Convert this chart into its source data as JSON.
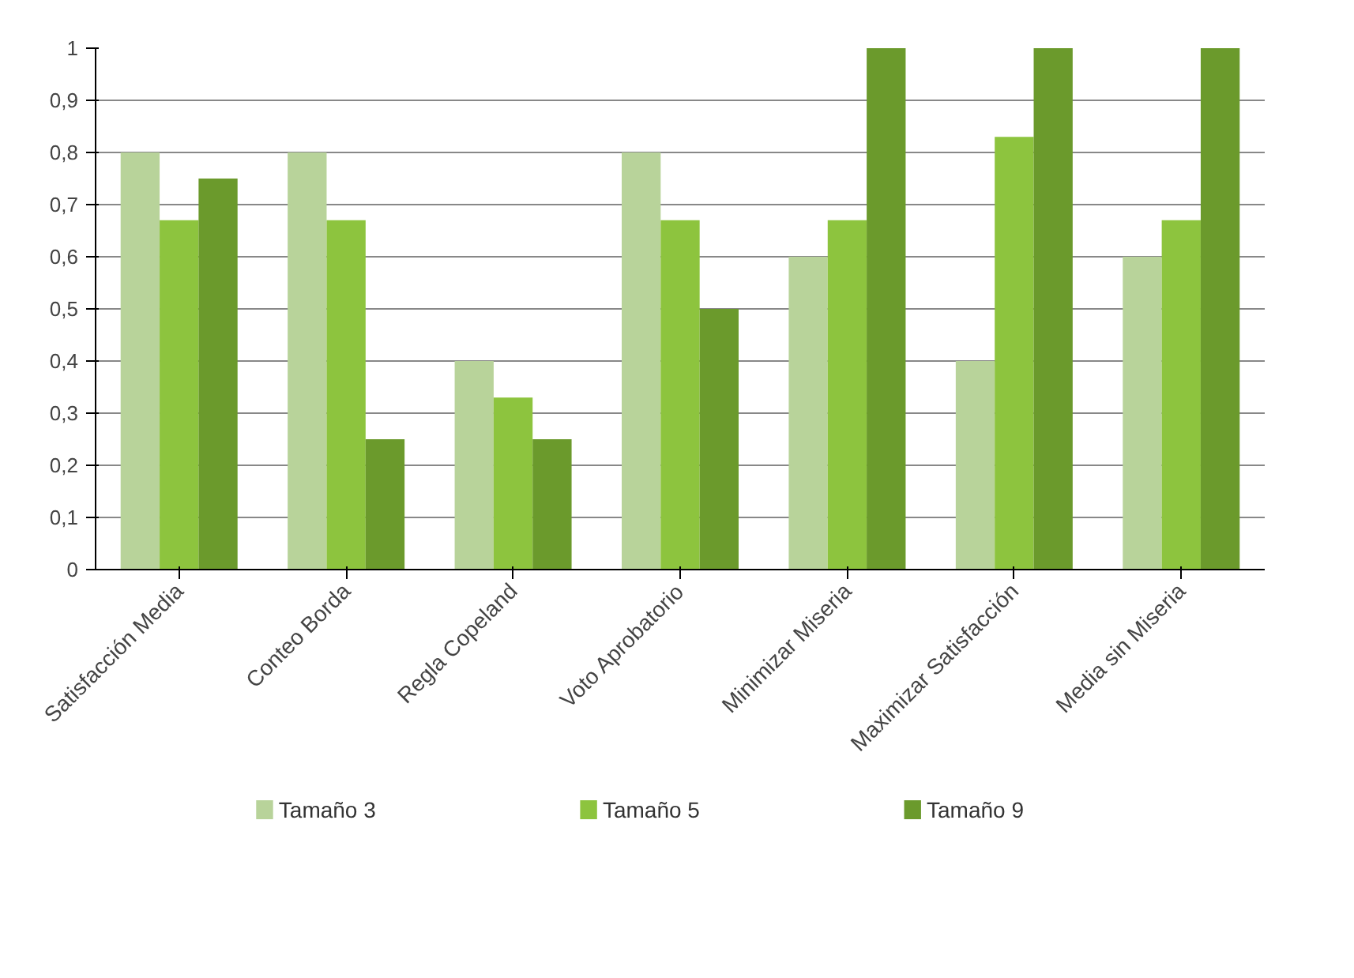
{
  "chart_data": {
    "type": "bar",
    "categories": [
      "Satisfacción Media",
      "Conteo Borda",
      "Regla Copeland",
      "Voto Aprobatorio",
      "Minimizar Miseria",
      "Maximizar Satisfacción",
      "Media sin Miseria"
    ],
    "series": [
      {
        "name": "Tamaño 3",
        "color": "#b8d39a",
        "values": [
          0.8,
          0.8,
          0.4,
          0.8,
          0.6,
          0.4,
          0.6
        ]
      },
      {
        "name": "Tamaño 5",
        "color": "#8dc43e",
        "values": [
          0.67,
          0.67,
          0.33,
          0.67,
          0.67,
          0.83,
          0.67
        ]
      },
      {
        "name": "Tamaño 9",
        "color": "#6b9a2c",
        "values": [
          0.75,
          0.25,
          0.25,
          0.5,
          1,
          1,
          1
        ]
      }
    ],
    "ylim": [
      0,
      1
    ],
    "yticks": [
      0,
      {
        "value": 0.1,
        "label": "0,1"
      },
      {
        "value": 0.2,
        "label": "0,2"
      },
      {
        "value": 0.3,
        "label": "0,3"
      },
      {
        "value": 0.4,
        "label": "0,4"
      },
      {
        "value": 0.5,
        "label": "0,5"
      },
      {
        "value": 0.6,
        "label": "0,6"
      },
      {
        "value": 0.7,
        "label": "0,7"
      },
      {
        "value": 0.8,
        "label": "0,8"
      },
      {
        "value": 0.9,
        "label": "0,9"
      },
      1
    ],
    "grid": "y",
    "legend": "bottom"
  }
}
